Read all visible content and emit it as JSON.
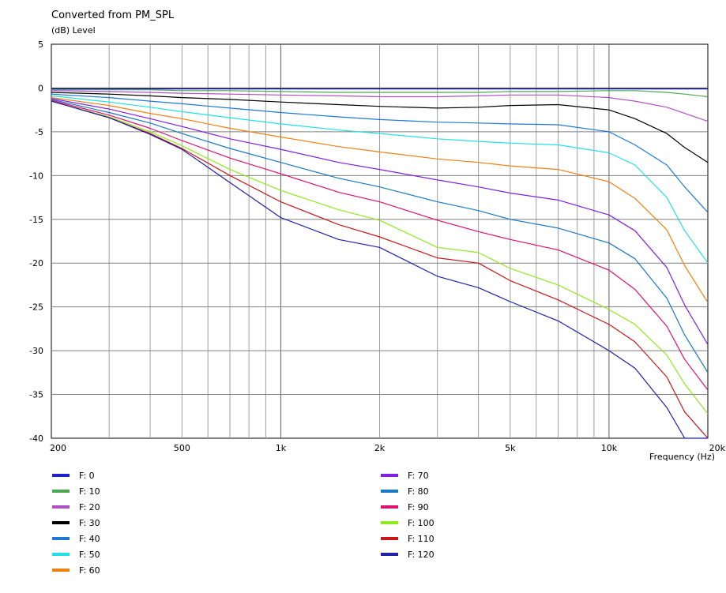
{
  "chart_data": {
    "type": "line",
    "title": "Converted from PM_SPL",
    "ylabel": "(dB)  Level",
    "xlabel": "Frequency  (Hz)",
    "x_scale": "log",
    "xlim": [
      200,
      20000
    ],
    "ylim": [
      -40,
      5
    ],
    "grid": true,
    "legend_position": "bottom",
    "x_ticks": [
      {
        "value": 200,
        "label": "200"
      },
      {
        "value": 500,
        "label": "500"
      },
      {
        "value": 1000,
        "label": "1k"
      },
      {
        "value": 2000,
        "label": "2k"
      },
      {
        "value": 5000,
        "label": "5k"
      },
      {
        "value": 10000,
        "label": "10k"
      },
      {
        "value": 20000,
        "label": "20k"
      }
    ],
    "y_ticks": [
      {
        "value": 5,
        "label": "5"
      },
      {
        "value": 0,
        "label": "0"
      },
      {
        "value": -5,
        "label": "-5"
      },
      {
        "value": -10,
        "label": "-10"
      },
      {
        "value": -15,
        "label": "-15"
      },
      {
        "value": -20,
        "label": "-20"
      },
      {
        "value": -25,
        "label": "-25"
      },
      {
        "value": -30,
        "label": "-30"
      },
      {
        "value": -35,
        "label": "-35"
      },
      {
        "value": -40,
        "label": "-40"
      }
    ],
    "x": [
      200,
      300,
      400,
      500,
      700,
      1000,
      1500,
      2000,
      3000,
      4000,
      5000,
      7000,
      10000,
      12000,
      15000,
      17000,
      20000
    ],
    "series": [
      {
        "name": "F: 0",
        "color": "#2020c8",
        "values": [
          -0.1,
          -0.1,
          -0.1,
          -0.1,
          -0.1,
          -0.1,
          -0.1,
          -0.1,
          -0.1,
          -0.1,
          -0.1,
          -0.1,
          -0.1,
          -0.1,
          -0.1,
          -0.1,
          -0.1
        ]
      },
      {
        "name": "F: 10",
        "color": "#4ca84c",
        "values": [
          -0.2,
          -0.2,
          -0.2,
          -0.3,
          -0.3,
          -0.4,
          -0.5,
          -0.5,
          -0.5,
          -0.5,
          -0.4,
          -0.4,
          -0.3,
          -0.3,
          -0.5,
          -0.7,
          -1.0
        ]
      },
      {
        "name": "F: 20",
        "color": "#b050c0",
        "values": [
          -0.3,
          -0.4,
          -0.5,
          -0.6,
          -0.7,
          -0.8,
          -0.9,
          -1.0,
          -1.0,
          -0.9,
          -0.8,
          -0.8,
          -1.1,
          -1.5,
          -2.2,
          -2.9,
          -3.8
        ]
      },
      {
        "name": "F: 30",
        "color": "#000000",
        "values": [
          -0.5,
          -0.7,
          -0.9,
          -1.1,
          -1.3,
          -1.6,
          -1.9,
          -2.1,
          -2.3,
          -2.2,
          -2.0,
          -1.9,
          -2.5,
          -3.5,
          -5.2,
          -6.8,
          -8.5
        ]
      },
      {
        "name": "F: 40",
        "color": "#1e78d8",
        "values": [
          -0.7,
          -1.1,
          -1.5,
          -1.8,
          -2.3,
          -2.8,
          -3.3,
          -3.6,
          -3.9,
          -4.0,
          -4.1,
          -4.2,
          -5.0,
          -6.5,
          -8.8,
          -11.3,
          -14.2
        ]
      },
      {
        "name": "F: 50",
        "color": "#20e0e8",
        "values": [
          -0.9,
          -1.6,
          -2.2,
          -2.7,
          -3.4,
          -4.1,
          -4.8,
          -5.2,
          -5.8,
          -6.1,
          -6.3,
          -6.5,
          -7.4,
          -8.8,
          -12.5,
          -16.3,
          -20.0
        ]
      },
      {
        "name": "F: 60",
        "color": "#f08010",
        "values": [
          -1.1,
          -2.0,
          -2.9,
          -3.5,
          -4.6,
          -5.6,
          -6.7,
          -7.3,
          -8.1,
          -8.5,
          -8.9,
          -9.3,
          -10.7,
          -12.6,
          -16.2,
          -20.3,
          -24.5
        ]
      },
      {
        "name": "F: 70",
        "color": "#8020e0",
        "values": [
          -1.2,
          -2.4,
          -3.5,
          -4.4,
          -5.8,
          -7.0,
          -8.5,
          -9.3,
          -10.5,
          -11.3,
          -12.0,
          -12.8,
          -14.5,
          -16.3,
          -20.5,
          -24.8,
          -29.3
        ]
      },
      {
        "name": "F: 80",
        "color": "#1878c8",
        "values": [
          -1.3,
          -2.8,
          -4.0,
          -5.2,
          -6.9,
          -8.5,
          -10.3,
          -11.3,
          -13.0,
          -14.0,
          -15.0,
          -16.0,
          -17.7,
          -19.5,
          -24.0,
          -28.2,
          -32.5
        ]
      },
      {
        "name": "F: 90",
        "color": "#e0106c",
        "values": [
          -1.4,
          -3.1,
          -4.6,
          -6.0,
          -8.0,
          -9.8,
          -11.9,
          -13.0,
          -15.1,
          -16.4,
          -17.3,
          -18.5,
          -20.8,
          -23.0,
          -27.2,
          -31.0,
          -34.5
        ]
      },
      {
        "name": "F: 100",
        "color": "#90e820",
        "values": [
          -1.5,
          -3.3,
          -5.0,
          -6.6,
          -9.3,
          -11.7,
          -13.9,
          -15.1,
          -18.2,
          -18.8,
          -20.6,
          -22.5,
          -25.3,
          -27.0,
          -30.5,
          -33.8,
          -37.2
        ]
      },
      {
        "name": "F: 110",
        "color": "#c81818",
        "values": [
          -1.5,
          -3.4,
          -5.2,
          -6.9,
          -10.0,
          -13.0,
          -15.6,
          -17.0,
          -19.4,
          -20.0,
          -22.0,
          -24.2,
          -27.0,
          -29.0,
          -33.0,
          -37.0,
          -40.0
        ]
      },
      {
        "name": "F: 120",
        "color": "#2020a8",
        "values": [
          -1.5,
          -3.4,
          -5.3,
          -7.0,
          -10.8,
          -14.8,
          -17.3,
          -18.2,
          -21.5,
          -22.8,
          -24.4,
          -26.6,
          -30.0,
          -32.0,
          -36.5,
          -40.0,
          -40.0
        ]
      }
    ]
  }
}
